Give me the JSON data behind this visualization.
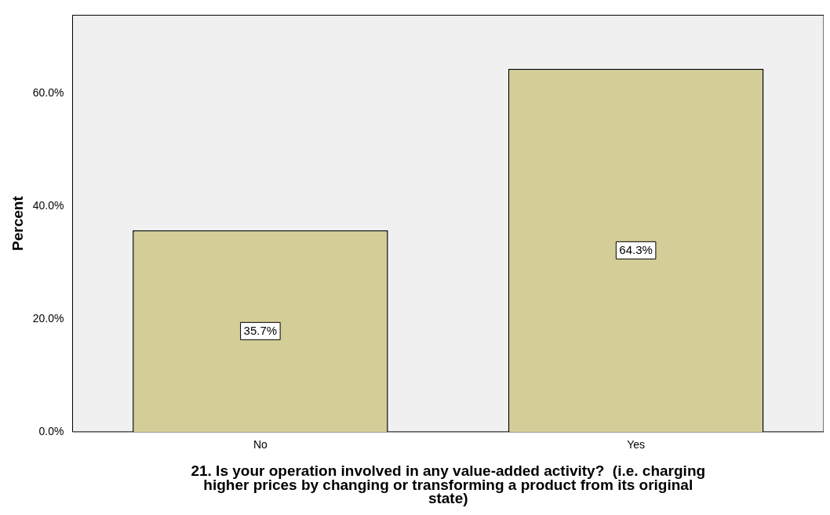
{
  "chart_data": {
    "type": "bar",
    "xlabel": "21. Is your operation involved in any value-added activity?  (i.e. charging\nhigher prices by changing or transforming a product from its original\nstate)",
    "ylabel": "Percent",
    "categories": [
      "No",
      "Yes"
    ],
    "values": [
      35.7,
      64.3
    ],
    "color": "#d3cd98",
    "value_labels": [
      "35.7%",
      "64.3%"
    ],
    "ylim": [
      0,
      73.8
    ],
    "yticks": [
      {
        "value": 0,
        "label": "0.0%"
      },
      {
        "value": 20,
        "label": "20.0%"
      },
      {
        "value": 40,
        "label": "40.0%"
      },
      {
        "value": 60,
        "label": "60.0%"
      }
    ],
    "grid": false,
    "legend": false
  }
}
